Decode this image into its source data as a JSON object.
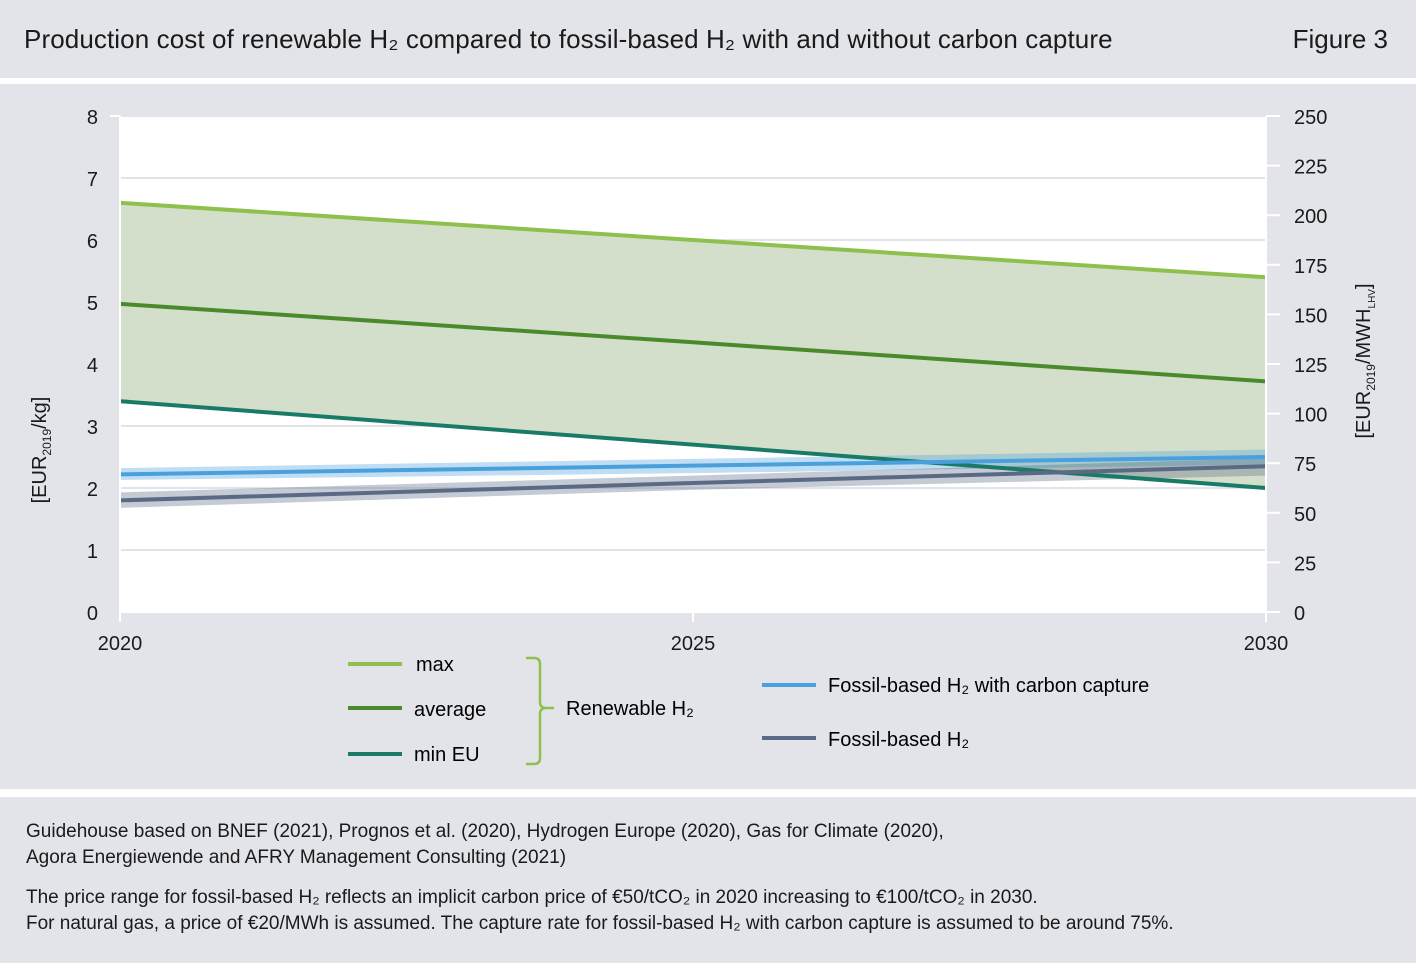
{
  "header": {
    "title_parts": [
      "Production cost of renewable H",
      "₂",
      " compared to fossil-based H",
      "₂",
      " with and without carbon capture"
    ],
    "figure_label": "Figure 3"
  },
  "chart_data": {
    "type": "line",
    "x": [
      2020,
      2025,
      2030
    ],
    "xlim": [
      2020,
      2030
    ],
    "x_ticks": [
      "2020",
      "2025",
      "2030"
    ],
    "ylim": [
      0,
      8
    ],
    "y_ticks": [
      "0",
      "1",
      "2",
      "3",
      "4",
      "5",
      "6",
      "7",
      "8"
    ],
    "ylabel": {
      "main": "[EUR",
      "sub": "2019",
      "end": "/kg]"
    },
    "y2lim": [
      0,
      250
    ],
    "y2_ticks": [
      "0",
      "25",
      "50",
      "75",
      "100",
      "125",
      "150",
      "175",
      "200",
      "225",
      "250"
    ],
    "y2label": {
      "main": "[EUR",
      "sub": "2019",
      "mid": "/MWH",
      "sub2": "LHV",
      "end": "]"
    },
    "grid": true,
    "series": [
      {
        "name": "max",
        "color": "#8dc04c",
        "values": [
          6.6,
          6.0,
          5.4
        ]
      },
      {
        "name": "average",
        "color": "#4a8a2c",
        "values": [
          4.97,
          4.35,
          3.72
        ]
      },
      {
        "name": "min EU",
        "color": "#1a7a68",
        "values": [
          3.4,
          2.7,
          2.0
        ]
      },
      {
        "name": "Fossil-based H₂ with carbon capture",
        "color": "#4aa0dc",
        "values": [
          2.22,
          2.36,
          2.5
        ],
        "band_low": [
          2.13,
          2.24,
          2.38
        ],
        "band_high": [
          2.32,
          2.47,
          2.62
        ]
      },
      {
        "name": "Fossil-based H₂",
        "color": "#5a6a84",
        "values": [
          1.8,
          2.08,
          2.35
        ],
        "band_low": [
          1.68,
          1.97,
          2.2
        ],
        "band_high": [
          1.93,
          2.2,
          2.48
        ]
      }
    ],
    "renewable_band": {
      "color": "#d4dfcb"
    },
    "legend": {
      "group_label_parts": [
        "Renewable H",
        "₂"
      ],
      "group_items": [
        "max",
        "average",
        "min EU"
      ],
      "other_items": [
        "Fossil-based H₂ with carbon capture",
        "Fossil-based H₂"
      ]
    }
  },
  "footer": {
    "source_lines": [
      "Guidehouse based on BNEF (2021), Prognos et al. (2020), Hydrogen Europe (2020), Gas for Climate (2020),",
      "Agora Energiewende and AFRY Management Consulting (2021)"
    ],
    "note_lines": [
      "The price range for fossil-based H₂ reflects an implicit carbon price of €50/tCO₂ in 2020 increasing to €100/tCO₂ in 2030.",
      "For natural gas, a price of €20/MWh is assumed. The capture rate for fossil-based H₂ with carbon capture is assumed to be around 75%."
    ]
  }
}
